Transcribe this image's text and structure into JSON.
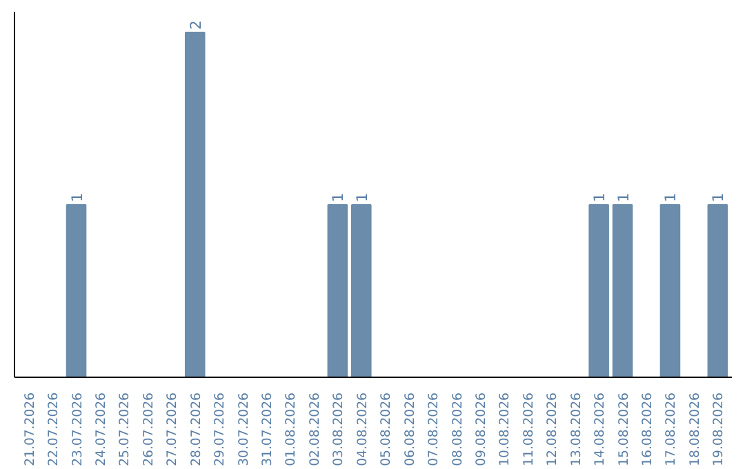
{
  "chart_data": {
    "type": "bar",
    "categories": [
      "21.07.2026",
      "22.07.2026",
      "23.07.2026",
      "24.07.2026",
      "25.07.2026",
      "26.07.2026",
      "27.07.2026",
      "28.07.2026",
      "29.07.2026",
      "30.07.2026",
      "31.07.2026",
      "01.08.2026",
      "02.08.2026",
      "03.08.2026",
      "04.08.2026",
      "05.08.2026",
      "06.08.2026",
      "07.08.2026",
      "08.08.2026",
      "09.08.2026",
      "10.08.2026",
      "11.08.2026",
      "12.08.2026",
      "13.08.2026",
      "14.08.2026",
      "15.08.2026",
      "16.08.2026",
      "17.08.2026",
      "18.08.2026",
      "19.08.2026"
    ],
    "values": [
      0,
      0,
      1,
      0,
      0,
      0,
      0,
      2,
      0,
      0,
      0,
      0,
      0,
      1,
      1,
      0,
      0,
      0,
      0,
      0,
      0,
      0,
      0,
      0,
      1,
      1,
      0,
      1,
      0,
      1
    ],
    "value_labels": [
      null,
      null,
      "1",
      null,
      null,
      null,
      null,
      "2",
      null,
      null,
      null,
      null,
      null,
      "1",
      "1",
      null,
      null,
      null,
      null,
      null,
      null,
      null,
      null,
      null,
      "1",
      "1",
      null,
      "1",
      null,
      "1"
    ],
    "color": "#6b8caa",
    "grid": false
  }
}
